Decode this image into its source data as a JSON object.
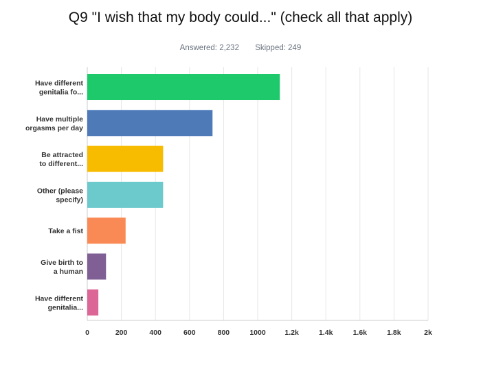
{
  "chart_data": {
    "type": "bar",
    "orientation": "horizontal",
    "title": "Q9 \"I wish that my body could...\" (check all that apply)",
    "answered_label": "Answered: 2,232",
    "skipped_label": "Skipped: 249",
    "categories": [
      [
        "Have different",
        "genitalia fo..."
      ],
      [
        "Have multiple",
        "orgasms per day"
      ],
      [
        "Be attracted",
        "to different..."
      ],
      [
        "Other (please",
        "specify)"
      ],
      [
        "Take a fist"
      ],
      [
        "Give birth to",
        "a human"
      ],
      [
        "Have different",
        "genitalia..."
      ]
    ],
    "values": [
      1130,
      735,
      445,
      445,
      225,
      110,
      65
    ],
    "colors": [
      "#1ec96b",
      "#4e7ab8",
      "#f7bc00",
      "#6cc9cc",
      "#fa8a55",
      "#7f5f94",
      "#dc6797"
    ],
    "xlim": [
      0,
      2000
    ],
    "xticks": [
      0,
      200,
      400,
      600,
      800,
      1000,
      1200,
      1400,
      1600,
      1800,
      2000
    ],
    "xtick_labels": [
      "0",
      "200",
      "400",
      "600",
      "800",
      "1000",
      "1.2k",
      "1.4k",
      "1.6k",
      "1.8k",
      "2k"
    ],
    "grid": true,
    "gridline_color": "#e6e6e6",
    "axis_color": "#cccccc"
  }
}
